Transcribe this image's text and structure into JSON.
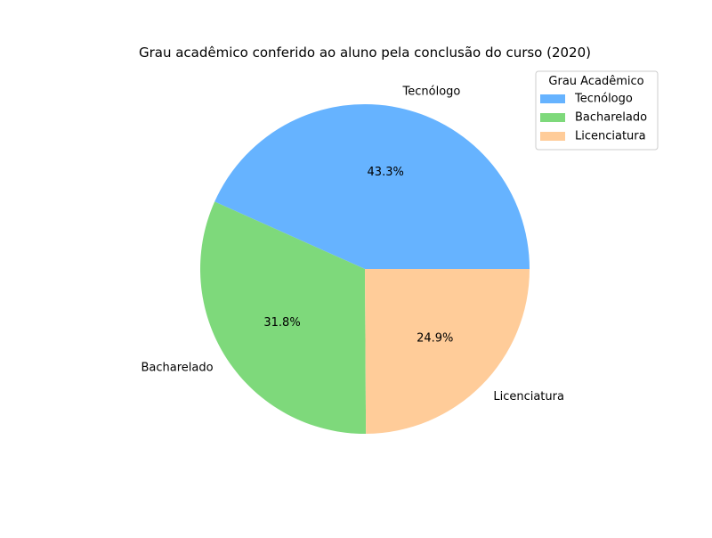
{
  "chart_data": {
    "type": "pie",
    "title": "Grau acadêmico conferido ao aluno pela conclusão do curso (2020)",
    "slices": [
      {
        "label": "Tecnólogo",
        "value": 43.3,
        "pct_label": "43.3%",
        "color": "#66b3ff"
      },
      {
        "label": "Bacharelado",
        "value": 31.8,
        "pct_label": "31.8%",
        "color": "#7ed97b"
      },
      {
        "label": "Licenciatura",
        "value": 24.9,
        "pct_label": "24.9%",
        "color": "#ffcc99"
      }
    ],
    "start_angle_deg": 0,
    "direction": "counterclockwise",
    "legend": {
      "title": "Grau Acadêmico",
      "placement": "top-right",
      "entries": [
        "Tecnólogo",
        "Bacharelado",
        "Licenciatura"
      ]
    }
  }
}
